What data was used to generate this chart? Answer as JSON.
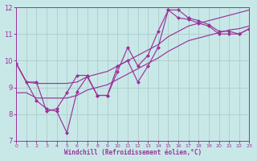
{
  "background_color": "#c8e8e8",
  "grid_color": "#b0d0d0",
  "line_color": "#993399",
  "xlabel": "Windchill (Refroidissement éolien,°C)",
  "xlim": [
    0,
    23
  ],
  "ylim": [
    7,
    12
  ],
  "yticks": [
    7,
    8,
    9,
    10,
    11,
    12
  ],
  "xticks": [
    0,
    1,
    2,
    3,
    4,
    5,
    6,
    7,
    8,
    9,
    10,
    11,
    12,
    13,
    14,
    15,
    16,
    17,
    18,
    19,
    20,
    21,
    22,
    23
  ],
  "line1_x": [
    0,
    1,
    2,
    3,
    4,
    5,
    6,
    7,
    8,
    9,
    10,
    11,
    12,
    13,
    14,
    15,
    16,
    17,
    18,
    19,
    20,
    21,
    22,
    23
  ],
  "line1_y": [
    9.9,
    9.2,
    9.15,
    9.15,
    9.15,
    9.15,
    9.2,
    9.4,
    9.5,
    9.6,
    9.8,
    10.0,
    10.2,
    10.4,
    10.6,
    10.9,
    11.1,
    11.3,
    11.4,
    11.5,
    11.6,
    11.7,
    11.8,
    11.9
  ],
  "line2_x": [
    0,
    1,
    2,
    3,
    4,
    5,
    6,
    7,
    8,
    9,
    10,
    11,
    12,
    13,
    14,
    15,
    16,
    17,
    18,
    19,
    20,
    21,
    22,
    23
  ],
  "line2_y": [
    8.8,
    8.8,
    8.6,
    8.6,
    8.6,
    8.6,
    8.7,
    8.9,
    9.0,
    9.1,
    9.3,
    9.5,
    9.7,
    9.9,
    10.1,
    10.35,
    10.55,
    10.75,
    10.85,
    10.95,
    11.05,
    11.15,
    11.2,
    11.3
  ],
  "line3_x": [
    0,
    1,
    2,
    3,
    4,
    5,
    6,
    7,
    8,
    9,
    10,
    11,
    12,
    13,
    14,
    15,
    16,
    17,
    18,
    19,
    20,
    21,
    22,
    23
  ],
  "line3_y": [
    9.9,
    9.2,
    9.2,
    8.1,
    8.2,
    8.8,
    9.45,
    9.45,
    8.7,
    8.7,
    9.6,
    10.5,
    9.8,
    10.2,
    11.1,
    11.9,
    11.9,
    11.6,
    11.5,
    11.35,
    11.1,
    11.1,
    11.0,
    11.2
  ],
  "line4_x": [
    0,
    2,
    3,
    4,
    5,
    6,
    7,
    8,
    9,
    10,
    11,
    12,
    13,
    14,
    15,
    16,
    17,
    18,
    19,
    20,
    21,
    22,
    23
  ],
  "line4_y": [
    9.9,
    8.5,
    8.2,
    8.1,
    7.3,
    8.85,
    9.4,
    8.7,
    8.7,
    9.8,
    10.0,
    9.2,
    9.8,
    10.5,
    11.9,
    11.6,
    11.55,
    11.4,
    11.3,
    11.0,
    11.0,
    11.0,
    11.2
  ]
}
